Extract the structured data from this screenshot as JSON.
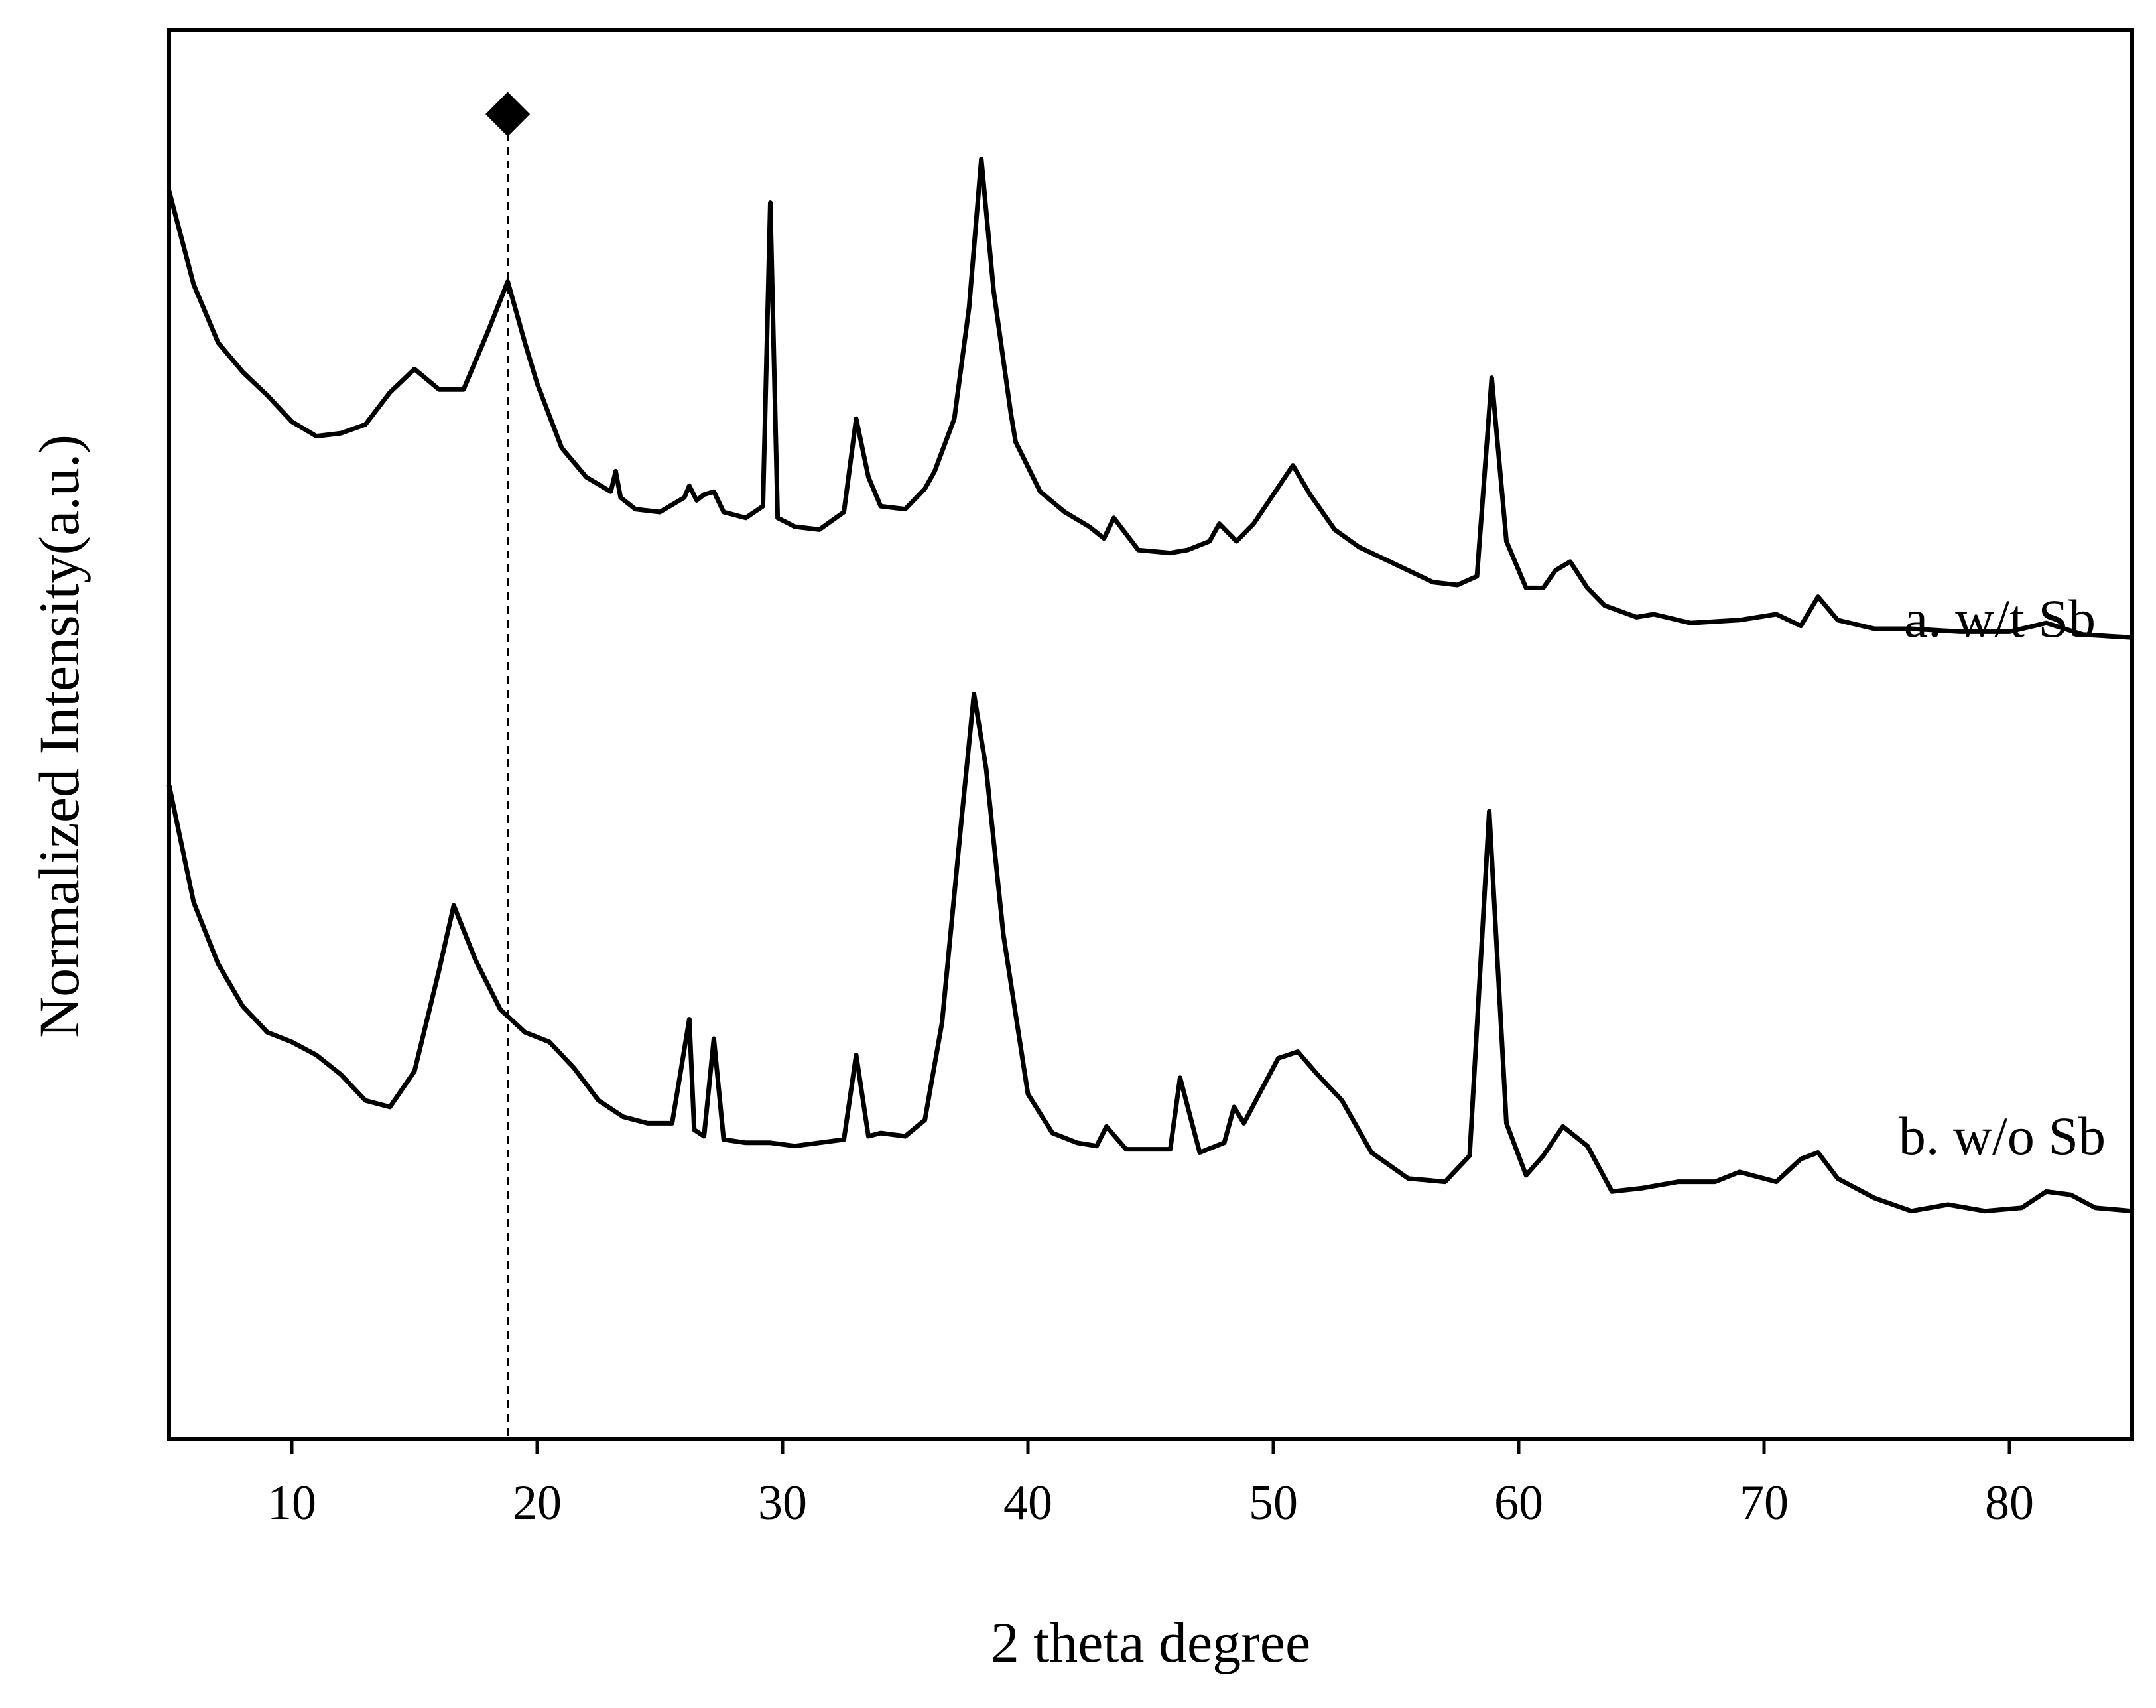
{
  "chart_data": {
    "type": "line",
    "title": "",
    "xlabel": "2 theta degree",
    "ylabel": "Normalized Intensity(a.u.)",
    "xlim": [
      5,
      85
    ],
    "xticks": [
      10,
      20,
      30,
      40,
      50,
      60,
      70,
      80
    ],
    "y_ticks_shown": false,
    "grid": false,
    "legend": "none",
    "marker": {
      "symbol": "◆",
      "x": 18.8,
      "style": "dashed vertical line"
    },
    "series": [
      {
        "name": "a. w/t Sb",
        "color": "#000000",
        "x": [
          5,
          6,
          7,
          8,
          9,
          10,
          11,
          12,
          13,
          14,
          15,
          16,
          17,
          18,
          18.8,
          19.5,
          20,
          21,
          22,
          23,
          23.2,
          23.4,
          24,
          25,
          26,
          26.2,
          26.5,
          26.8,
          27.2,
          27.6,
          28.5,
          29.2,
          29.5,
          29.8,
          30.5,
          31.5,
          32.5,
          33,
          33.5,
          34,
          35,
          35.8,
          36.2,
          37,
          37.6,
          38.1,
          38.6,
          39.3,
          39.5,
          40.5,
          41.5,
          42.5,
          43.1,
          43.5,
          44.5,
          45.8,
          46.5,
          47.4,
          47.8,
          48.5,
          49.2,
          50,
          50.8,
          51.5,
          52.5,
          53.5,
          55,
          56.5,
          57.5,
          58.3,
          58.9,
          59.5,
          60.3,
          61,
          61.5,
          62.1,
          62.8,
          63.5,
          64.8,
          65.5,
          67,
          69,
          70.5,
          71.5,
          72.2,
          73,
          74.5,
          76,
          78,
          80,
          81.5,
          83,
          85
        ],
        "y": [
          900,
          740,
          640,
          590,
          550,
          505,
          480,
          485,
          500,
          555,
          595,
          560,
          560,
          660,
          745,
          640,
          570,
          460,
          410,
          385,
          420,
          375,
          355,
          350,
          375,
          395,
          370,
          380,
          385,
          350,
          340,
          360,
          880,
          340,
          325,
          320,
          350,
          510,
          410,
          360,
          355,
          390,
          420,
          510,
          700,
          955,
          730,
          520,
          470,
          385,
          350,
          325,
          305,
          340,
          285,
          280,
          285,
          300,
          330,
          300,
          330,
          380,
          430,
          380,
          320,
          290,
          260,
          230,
          225,
          240,
          580,
          300,
          220,
          220,
          250,
          265,
          220,
          190,
          170,
          175,
          160,
          165,
          175,
          155,
          205,
          165,
          150,
          150,
          145,
          145,
          160,
          140,
          135
        ]
      },
      {
        "name": "b. w/o Sb",
        "color": "#000000",
        "x": [
          5,
          6,
          7,
          8,
          9,
          10,
          11,
          12,
          13,
          14,
          15,
          16,
          16.6,
          17.5,
          18.5,
          19.5,
          20.5,
          21.5,
          22.5,
          23.5,
          24.5,
          25.5,
          26.2,
          26.4,
          26.8,
          27.2,
          27.6,
          28.5,
          29.5,
          30.5,
          31.5,
          32.5,
          33,
          33.5,
          34,
          35,
          35.8,
          36.5,
          37.3,
          37.8,
          38.3,
          39,
          40,
          41,
          42,
          42.8,
          43.2,
          44,
          45,
          45.8,
          46.2,
          47,
          48,
          48.4,
          48.8,
          49.5,
          50.2,
          51,
          51.8,
          52.8,
          54,
          55.5,
          57,
          58,
          58.8,
          59.5,
          60.3,
          61,
          61.8,
          62.8,
          63.8,
          65,
          66.5,
          68,
          69,
          70.5,
          71.5,
          72.2,
          73,
          74.5,
          76,
          77.5,
          79,
          80.5,
          81.5,
          82.5,
          83.5,
          85
        ],
        "y": [
          690,
          510,
          415,
          350,
          310,
          295,
          275,
          245,
          205,
          195,
          250,
          405,
          505,
          420,
          345,
          310,
          295,
          255,
          205,
          180,
          170,
          170,
          330,
          160,
          150,
          300,
          145,
          140,
          140,
          135,
          140,
          145,
          275,
          150,
          155,
          150,
          175,
          325,
          640,
          830,
          715,
          460,
          215,
          155,
          140,
          135,
          165,
          130,
          130,
          130,
          240,
          125,
          140,
          195,
          170,
          220,
          270,
          280,
          245,
          205,
          125,
          85,
          80,
          120,
          650,
          170,
          90,
          120,
          165,
          135,
          65,
          70,
          80,
          80,
          95,
          80,
          115,
          125,
          85,
          55,
          35,
          45,
          35,
          40,
          65,
          60,
          40,
          35
        ]
      }
    ]
  }
}
